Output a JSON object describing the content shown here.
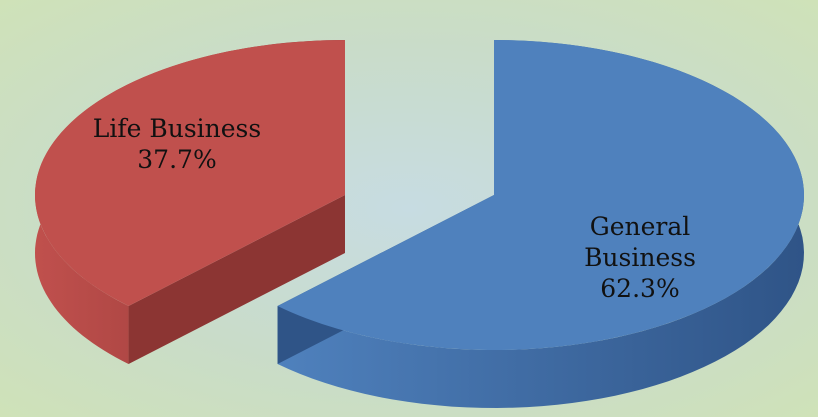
{
  "chart_data": {
    "type": "pie",
    "style": "3d-exploded",
    "slices": [
      {
        "name": "Life Business",
        "value": 37.7,
        "label_lines": [
          "Life Business",
          "37.7%"
        ],
        "color": "#c0504d",
        "side_color": "#8c3533"
      },
      {
        "name": "General Business",
        "value": 62.3,
        "label_lines": [
          "General",
          "Business",
          "62.3%"
        ],
        "color": "#4f81bd",
        "side_color": "#2f5487"
      }
    ]
  },
  "colors": {
    "background_center": "#c7dce2",
    "background_edge": "#cfe2b8"
  }
}
